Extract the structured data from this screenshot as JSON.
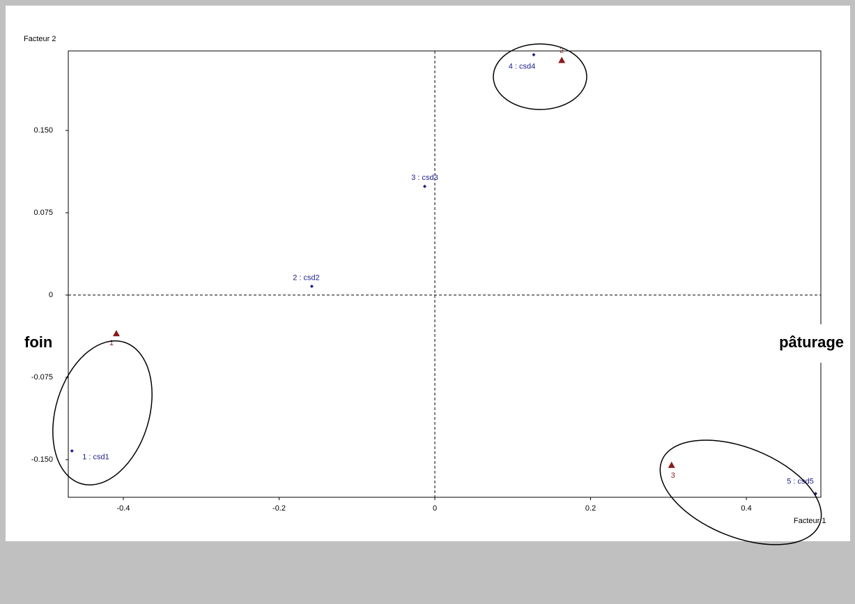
{
  "chart_data": {
    "type": "scatter",
    "xlabel": "Facteur 1",
    "ylabel": "Facteur 2",
    "xlim": [
      -0.4707,
      0.4957
    ],
    "ylim": [
      -0.1843,
      0.2225
    ],
    "xticks": [
      -0.4,
      -0.2,
      0,
      0.2,
      0.4
    ],
    "yticks": [
      {
        "value": -0.15,
        "label": "-0.150"
      },
      -0.075,
      0,
      0.075,
      {
        "value": 0.15,
        "label": "0.150"
      }
    ],
    "series": [
      {
        "color": "#1c1c8c",
        "marker": "diamond",
        "x": [
          -0.466,
          -0.158,
          -0.013,
          0.127,
          0.489
        ],
        "values": [
          -0.142,
          0.008,
          0.099,
          0.219,
          -0.181
        ],
        "labels": [
          "1 : csd1",
          "2 : csd2",
          "3 : csd3",
          "4 : csd4",
          "5 : csd5"
        ]
      },
      {
        "color": "#8b1a1a",
        "marker": "triangle",
        "x": [
          -0.409,
          0.163,
          0.304
        ],
        "values": [
          -0.035,
          0.214,
          -0.155
        ],
        "labels": [
          "1",
          "2",
          "3"
        ]
      }
    ],
    "annotations": [
      "foin",
      "pâturage"
    ]
  }
}
